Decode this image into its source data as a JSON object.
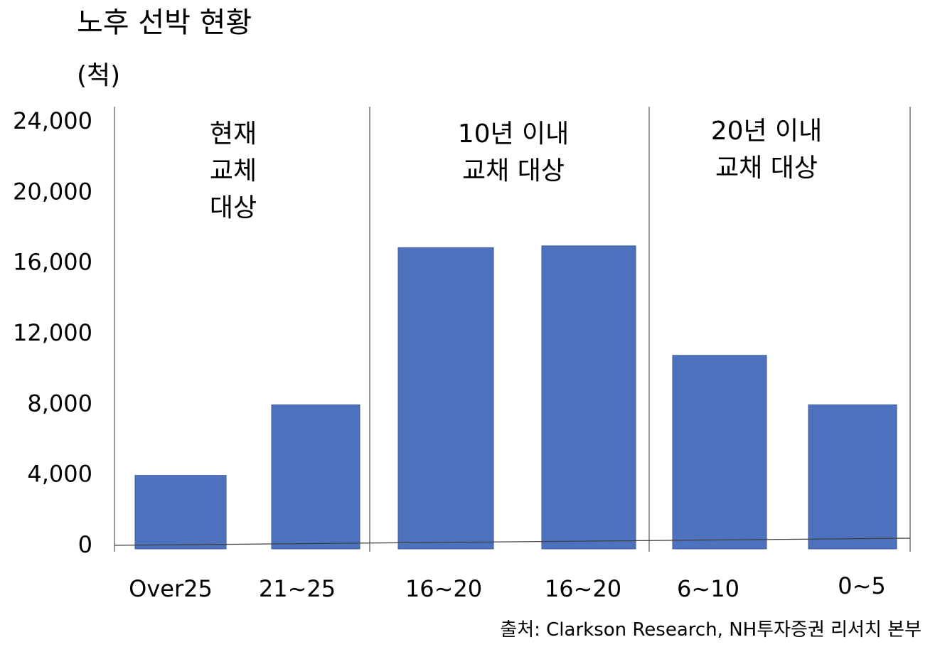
{
  "chart_data": {
    "type": "bar",
    "title": "노후 선박 현황",
    "unit_label": "(척)",
    "ylim": [
      0,
      24000
    ],
    "yticks": [
      0,
      4000,
      8000,
      12000,
      16000,
      20000,
      24000
    ],
    "ytick_labels": [
      "0",
      "4,000",
      "8,000",
      "12,000",
      "16,000",
      "20,000",
      "24,000"
    ],
    "categories": [
      "Over25",
      "21~25",
      "16~20",
      "16~20",
      "6~10",
      "0~5"
    ],
    "values": [
      4000,
      8000,
      16900,
      17000,
      10800,
      8000
    ],
    "bar_color": "#4e72bd",
    "grid": false,
    "groups": [
      {
        "label_lines": [
          "현재",
          "교체",
          "대상"
        ],
        "categories": [
          0,
          1
        ]
      },
      {
        "label_lines": [
          "10년 이내",
          "교채 대상"
        ],
        "categories": [
          2,
          3
        ]
      },
      {
        "label_lines": [
          "20년 이내",
          "교채 대상"
        ],
        "categories": [
          4,
          5
        ]
      }
    ]
  },
  "source": "출처: Clarkson Research, NH투자증권 리서치 본부"
}
